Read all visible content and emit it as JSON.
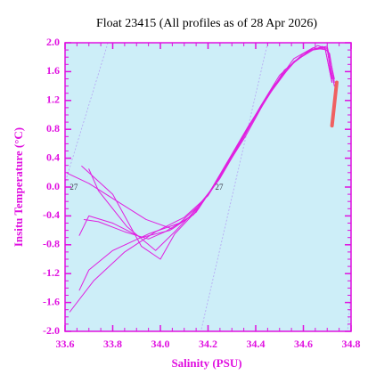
{
  "chart_data": {
    "type": "line",
    "title": "Float 23415  (All profiles as of 28 Apr 2026)",
    "x_label": "Salinity (PSU)",
    "y_label": "Insitu Temperature (°C)",
    "xlim": [
      33.6,
      34.8
    ],
    "ylim": [
      -2,
      2
    ],
    "xticks": [
      33.6,
      33.8,
      {
        "value": 34,
        "label": "34.0"
      },
      34.2,
      34.4,
      34.6,
      34.8
    ],
    "yticks": [
      {
        "value": -2,
        "label": "-2.0"
      },
      -1.6,
      -1.2,
      -0.8,
      -0.4,
      {
        "value": 0,
        "label": "0.0"
      },
      0.4,
      0.8,
      1.2,
      1.6,
      {
        "value": 2,
        "label": "2.0"
      }
    ],
    "axis_color": "#e010e0",
    "background": "#cdeef8",
    "isopycnal_color": "#b4a4f4",
    "isopycnals": [
      {
        "x": [
          33.78,
          33.6
        ],
        "values": [
          2.0,
          0.06
        ]
      },
      {
        "x": [
          34.45,
          34.17
        ],
        "values": [
          2.0,
          -2.0
        ]
      },
      {
        "x": [
          34.8,
          34.785
        ],
        "values": [
          -1.45,
          -2.0
        ]
      }
    ],
    "annotations": [
      {
        "text": "27",
        "x": 33.62,
        "y": -0.01
      },
      {
        "text": "27",
        "x": 34.23,
        "y": -0.01
      }
    ],
    "series": [
      {
        "color": "#e020e0",
        "line_width": 1,
        "x": [
          34.73,
          34.71,
          34.68,
          34.62,
          34.52,
          34.44,
          34.36,
          34.28,
          34.2,
          34.1,
          33.98,
          33.85,
          33.72,
          33.62
        ],
        "values": [
          1.45,
          1.85,
          1.95,
          1.88,
          1.62,
          1.2,
          0.72,
          0.3,
          -0.12,
          -0.42,
          -0.62,
          -0.9,
          -1.3,
          -1.73
        ]
      },
      {
        "color": "#e020e0",
        "line_width": 1,
        "x": [
          34.72,
          34.7,
          34.66,
          34.6,
          34.5,
          34.42,
          34.34,
          34.26,
          34.18,
          34.08,
          33.95,
          33.8,
          33.7,
          33.66
        ],
        "values": [
          1.5,
          1.92,
          1.96,
          1.85,
          1.55,
          1.12,
          0.65,
          0.2,
          -0.2,
          -0.5,
          -0.65,
          -0.88,
          -1.15,
          -1.43
        ]
      },
      {
        "color": "#e020e0",
        "line_width": 1,
        "x": [
          34.73,
          34.7,
          34.64,
          34.56,
          34.46,
          34.38,
          34.3,
          34.22,
          34.14,
          34.04,
          33.92,
          33.8,
          33.7,
          33.66
        ],
        "values": [
          1.4,
          1.9,
          1.93,
          1.78,
          1.32,
          0.9,
          0.45,
          0.0,
          -0.38,
          -0.6,
          -0.7,
          -0.5,
          -0.4,
          -0.67
        ]
      },
      {
        "color": "#e020e0",
        "line_width": 1,
        "x": [
          34.72,
          34.69,
          34.63,
          34.55,
          34.47,
          34.39,
          34.31,
          34.23,
          34.15,
          34.05,
          33.94,
          33.82,
          33.7,
          33.61
        ],
        "values": [
          1.45,
          1.94,
          1.9,
          1.7,
          1.38,
          0.95,
          0.5,
          0.05,
          -0.35,
          -0.58,
          -0.45,
          -0.2,
          0.05,
          0.19
        ]
      },
      {
        "color": "#e020e0",
        "line_width": 1,
        "x": [
          34.73,
          34.7,
          34.65,
          34.57,
          34.48,
          34.4,
          34.32,
          34.24,
          34.16,
          34.06,
          34.0,
          33.92,
          33.8,
          33.67
        ],
        "values": [
          1.5,
          1.95,
          1.92,
          1.76,
          1.42,
          1.0,
          0.55,
          0.1,
          -0.3,
          -0.65,
          -1.0,
          -0.82,
          -0.1,
          0.29
        ]
      },
      {
        "color": "#e020e0",
        "line_width": 1,
        "x": [
          34.72,
          34.7,
          34.64,
          34.56,
          34.48,
          34.4,
          34.32,
          34.25,
          34.16,
          34.06,
          33.98,
          33.86,
          33.74,
          33.7
        ],
        "values": [
          1.45,
          1.93,
          1.9,
          1.74,
          1.4,
          0.98,
          0.52,
          0.12,
          -0.28,
          -0.62,
          -0.88,
          -0.55,
          -0.05,
          0.25
        ]
      },
      {
        "color": "#e020e0",
        "line_width": 1,
        "x": [
          34.72,
          34.69,
          34.63,
          34.55,
          34.46,
          34.37,
          34.29,
          34.21,
          34.12,
          34.02,
          33.95,
          33.85,
          33.74,
          33.68
        ],
        "values": [
          1.45,
          1.94,
          1.9,
          1.7,
          1.3,
          0.85,
          0.4,
          -0.05,
          -0.42,
          -0.62,
          -0.72,
          -0.62,
          -0.48,
          -0.45
        ]
      },
      {
        "color": "#f06060",
        "line_width": 4,
        "x": [
          34.74,
          34.735,
          34.73,
          34.725,
          34.72
        ],
        "values": [
          1.45,
          1.3,
          1.15,
          1.0,
          0.85
        ]
      }
    ]
  }
}
